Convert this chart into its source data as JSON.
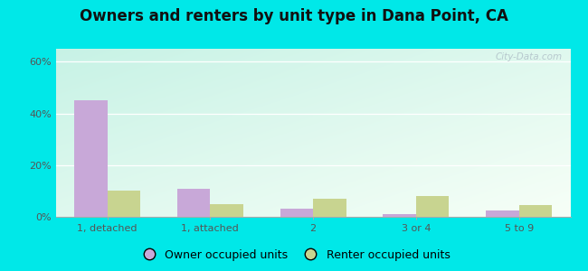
{
  "title": "Owners and renters by unit type in Dana Point, CA",
  "categories": [
    "1, detached",
    "1, attached",
    "2",
    "3 or 4",
    "5 to 9"
  ],
  "owner_values": [
    45.0,
    11.0,
    3.0,
    1.0,
    2.5
  ],
  "renter_values": [
    10.0,
    5.0,
    7.0,
    8.0,
    4.5
  ],
  "owner_color": "#c8a8d8",
  "renter_color": "#c8d490",
  "yticks": [
    0,
    20,
    40,
    60
  ],
  "ylim": [
    0,
    65
  ],
  "bar_width": 0.32,
  "bg_outer": "#00e8e8",
  "title_fontsize": 12,
  "tick_fontsize": 8,
  "legend_fontsize": 9,
  "watermark": "City-Data.com",
  "legend_owner_label": "Owner occupied units",
  "legend_renter_label": "Renter occupied units"
}
